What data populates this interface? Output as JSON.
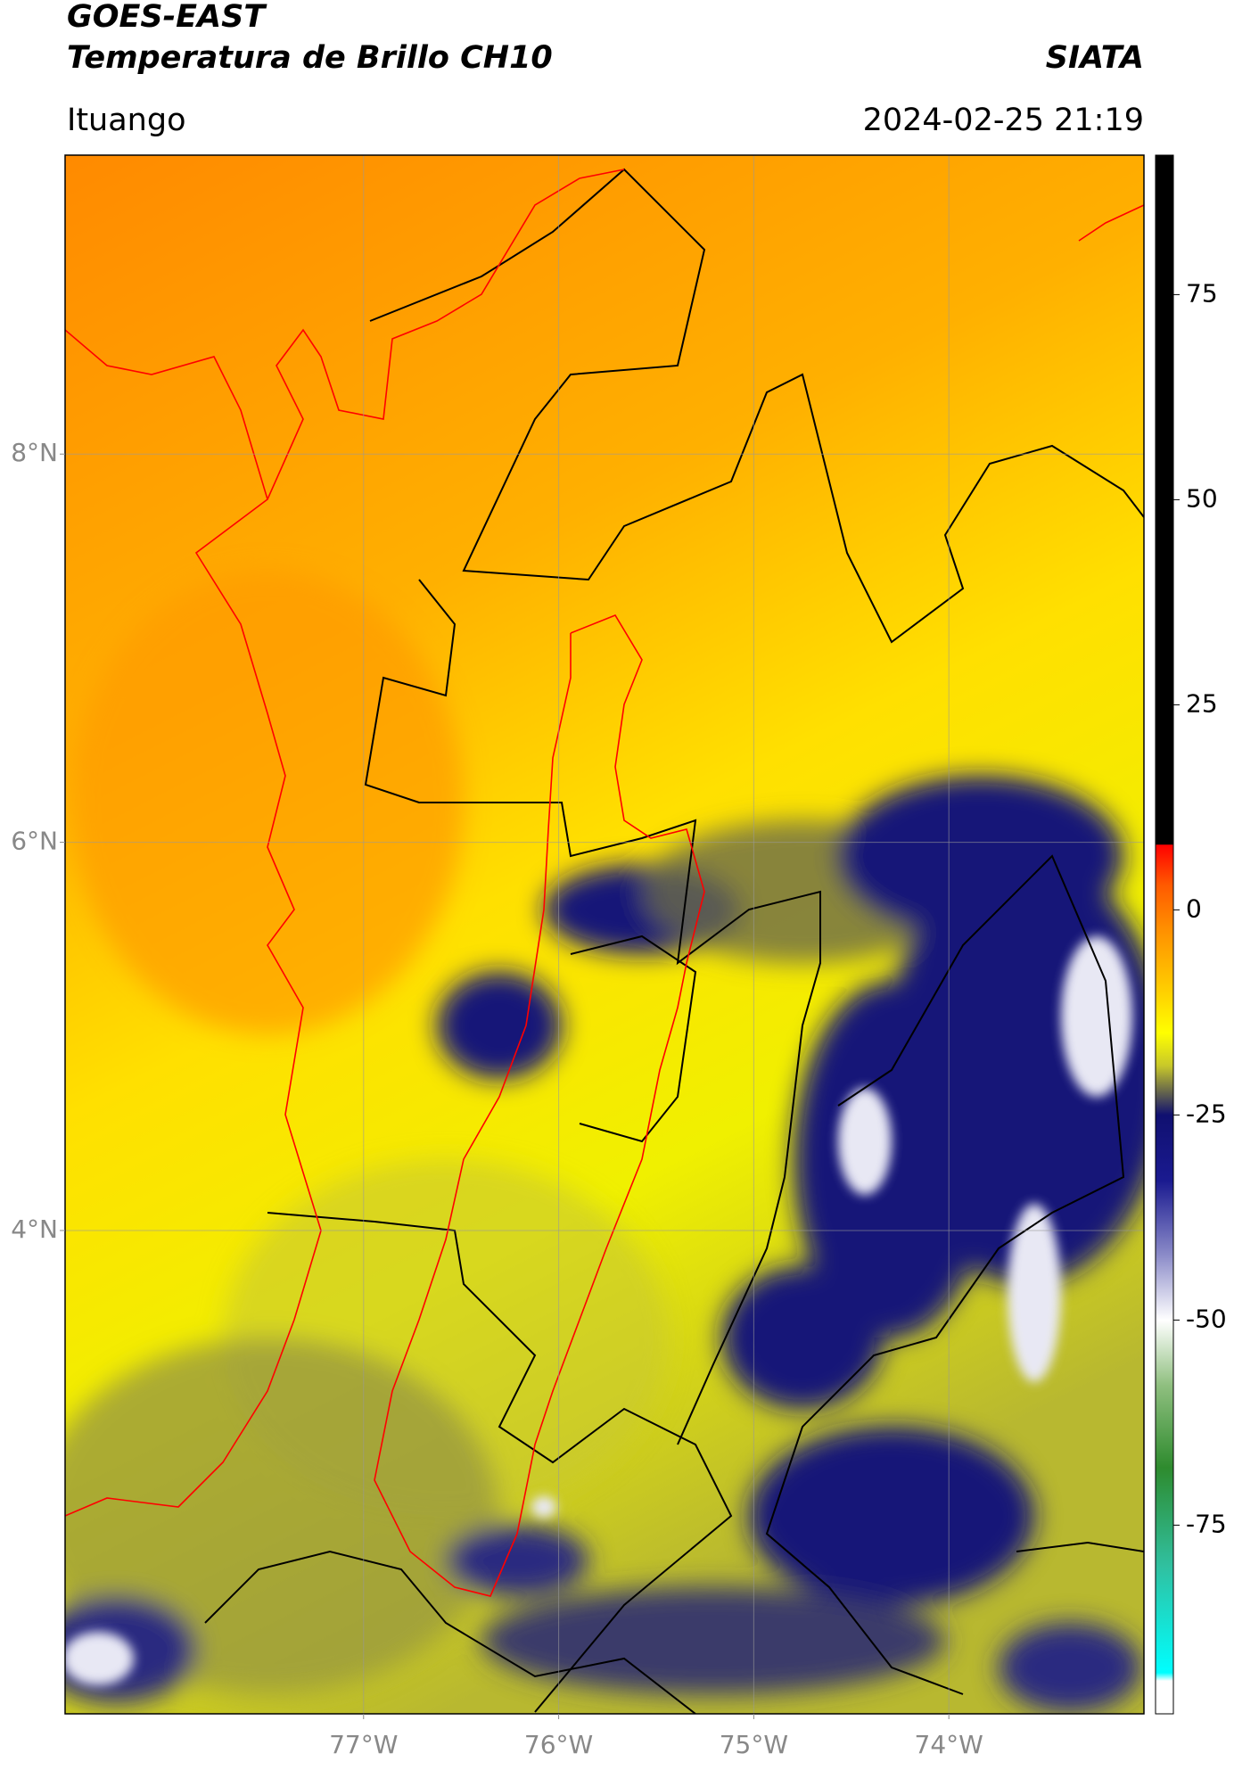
{
  "chart_data": {
    "type": "map",
    "title": "GOES-EAST",
    "subtitle": "Temperatura de Brillo CH10",
    "source": "SIATA",
    "region": "Ituango",
    "datetime": "2024-02-25 21:19",
    "xlim": [
      -78.53,
      -73.0
    ],
    "ylim": [
      1.51,
      9.54
    ],
    "xticks": [
      {
        "value": -77,
        "label": "77°W"
      },
      {
        "value": -76,
        "label": "76°W"
      },
      {
        "value": -75,
        "label": "75°W"
      },
      {
        "value": -74,
        "label": "74°W"
      }
    ],
    "yticks": [
      {
        "value": 8,
        "label": "8°N"
      },
      {
        "value": 6,
        "label": "6°N"
      },
      {
        "value": 4,
        "label": "4°N"
      }
    ],
    "grid": true,
    "colorbar": {
      "clim": [
        -98,
        92
      ],
      "ticks": [
        75,
        50,
        25,
        0,
        -25,
        -50,
        -75
      ],
      "stops": [
        {
          "value": 92,
          "color": "#000000"
        },
        {
          "value": 8,
          "color": "#000000"
        },
        {
          "value": 7.9,
          "color": "#ff0000"
        },
        {
          "value": 3,
          "color": "#ff5a00"
        },
        {
          "value": -2,
          "color": "#ff8c00"
        },
        {
          "value": -10,
          "color": "#ffd000"
        },
        {
          "value": -15,
          "color": "#ffff00"
        },
        {
          "value": -19,
          "color": "#c8c82a"
        },
        {
          "value": -22,
          "color": "#6b6b4a"
        },
        {
          "value": -25,
          "color": "#101070"
        },
        {
          "value": -33,
          "color": "#1a1a90"
        },
        {
          "value": -42,
          "color": "#8a8ac8"
        },
        {
          "value": -50,
          "color": "#ffffff"
        },
        {
          "value": -58,
          "color": "#8fbf7f"
        },
        {
          "value": -68,
          "color": "#2e8b2e"
        },
        {
          "value": -80,
          "color": "#30c0a0"
        },
        {
          "value": -93,
          "color": "#00ffff"
        },
        {
          "value": -94,
          "color": "#ffffff"
        },
        {
          "value": -98,
          "color": "#ffffff"
        }
      ]
    }
  }
}
